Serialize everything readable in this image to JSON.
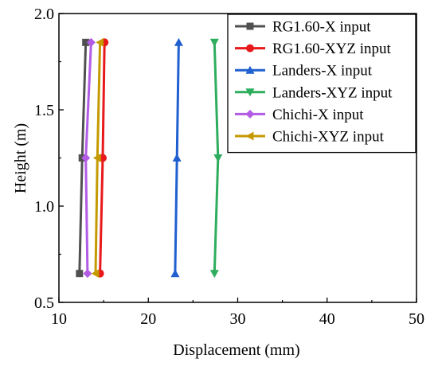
{
  "chart_data": {
    "type": "line",
    "xlabel": "Displacement (mm)",
    "ylabel": "Height (m)",
    "xlim": [
      10,
      50
    ],
    "ylim": [
      0.5,
      2.0
    ],
    "xticks": [
      "10",
      "20",
      "30",
      "40",
      "50"
    ],
    "yticks": [
      "0.5",
      "1.0",
      "1.5",
      "2.0"
    ],
    "grid": false,
    "legend_position": "top-right",
    "series": [
      {
        "name": "RG1.60-X input",
        "color": "#505050",
        "marker": "square",
        "x": [
          12.3,
          12.6,
          13.0
        ],
        "y": [
          0.65,
          1.25,
          1.85
        ]
      },
      {
        "name": "RG1.60-XYZ input",
        "color": "#e8191a",
        "marker": "circle",
        "x": [
          14.6,
          14.9,
          15.1
        ],
        "y": [
          0.65,
          1.25,
          1.85
        ]
      },
      {
        "name": "Landers-X input",
        "color": "#1f5fd0",
        "marker": "triangle-up",
        "x": [
          23.0,
          23.2,
          23.4
        ],
        "y": [
          0.65,
          1.25,
          1.85
        ]
      },
      {
        "name": "Landers-XYZ input",
        "color": "#2ead5e",
        "marker": "triangle-down",
        "x": [
          27.4,
          27.8,
          27.4
        ],
        "y": [
          0.65,
          1.25,
          1.85
        ]
      },
      {
        "name": "Chichi-X input",
        "color": "#b25ce6",
        "marker": "diamond",
        "x": [
          13.2,
          13.0,
          13.6
        ],
        "y": [
          0.65,
          1.25,
          1.85
        ]
      },
      {
        "name": "Chichi-XYZ input",
        "color": "#c49a00",
        "marker": "triangle-left",
        "x": [
          14.1,
          14.3,
          14.6
        ],
        "y": [
          0.65,
          1.25,
          1.85
        ]
      }
    ]
  }
}
